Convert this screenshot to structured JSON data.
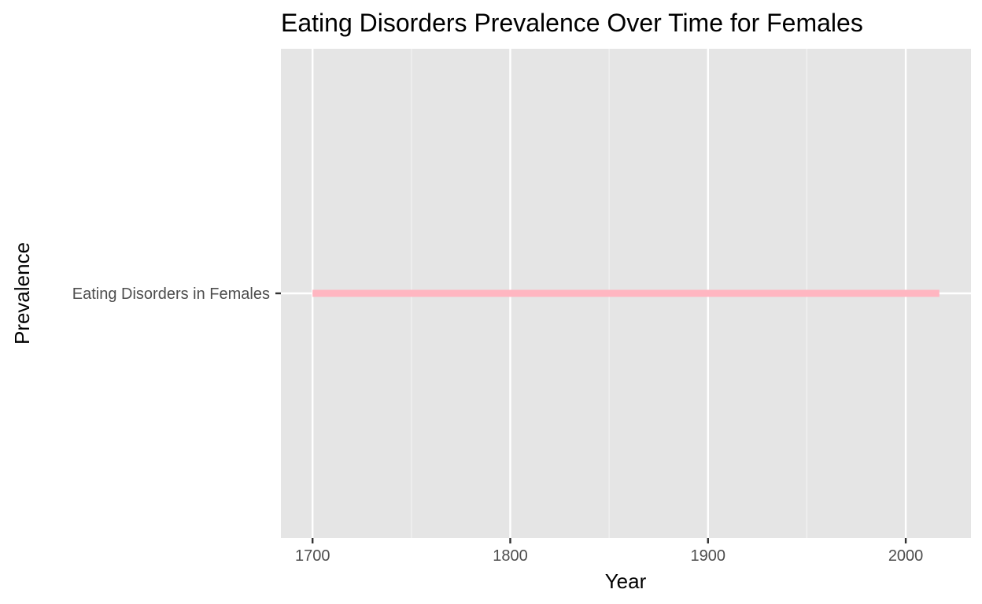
{
  "chart_data": {
    "type": "line",
    "title": "Eating Disorders Prevalence Over Time for Females",
    "xlabel": "Year",
    "ylabel": "Prevalence",
    "categories": [
      "Eating Disorders in Females"
    ],
    "xlim": [
      1684,
      2033
    ],
    "x_ticks": [
      1700,
      1800,
      1900,
      2000
    ],
    "x_tick_labels": [
      "1700",
      "1800",
      "1900",
      "2000"
    ],
    "x_minor_ticks": [
      1750,
      1850,
      1950
    ],
    "series": [
      {
        "name": "Eating Disorders in Females",
        "category": "Eating Disorders in Females",
        "x_start": 1700,
        "x_end": 2017
      }
    ],
    "grid": true,
    "legend": "none",
    "colors": {
      "panel_background": "#e5e5e5",
      "grid_major": "#ffffff",
      "grid_minor": "#f2f2f2",
      "series": "#ffb6c1",
      "tick_text": "#4d4d4d",
      "tick_mark": "#333333"
    }
  }
}
